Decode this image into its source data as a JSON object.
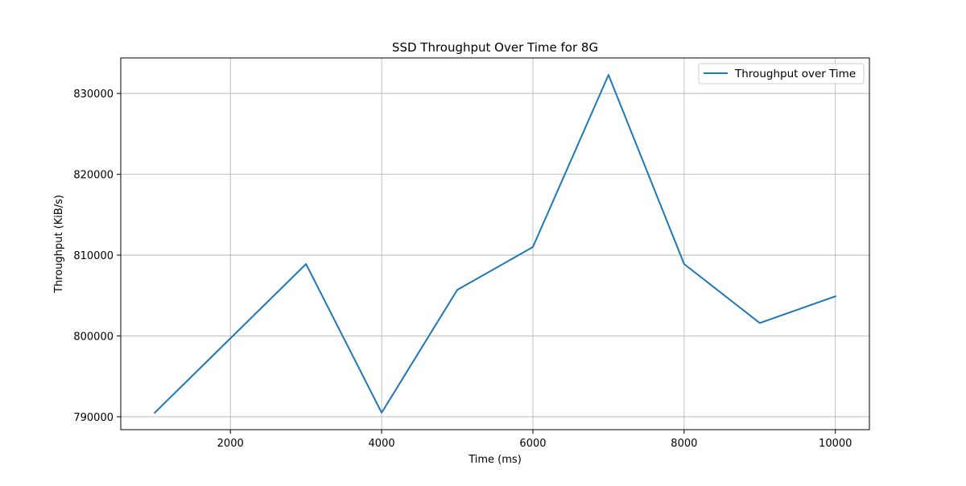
{
  "chart_data": {
    "type": "line",
    "title": "SSD Throughput Over Time for 8G",
    "xlabel": "Time (ms)",
    "ylabel": "Throughput (KiB/s)",
    "x": [
      1000,
      2000,
      3000,
      4000,
      5000,
      6000,
      7000,
      8000,
      9000,
      10000
    ],
    "series": [
      {
        "name": "Throughput over Time",
        "color": "#1f77b4",
        "values": [
          790500,
          799700,
          808900,
          790500,
          805700,
          811000,
          832300,
          808900,
          801600,
          804900
        ]
      }
    ],
    "xlim": [
      550,
      10450
    ],
    "ylim": [
      788400,
      834400
    ],
    "xticks": [
      "2000",
      "4000",
      "6000",
      "8000",
      "10000"
    ],
    "yticks": [
      "790000",
      "800000",
      "810000",
      "820000",
      "830000"
    ],
    "grid": true,
    "legend_position": "top-right"
  }
}
